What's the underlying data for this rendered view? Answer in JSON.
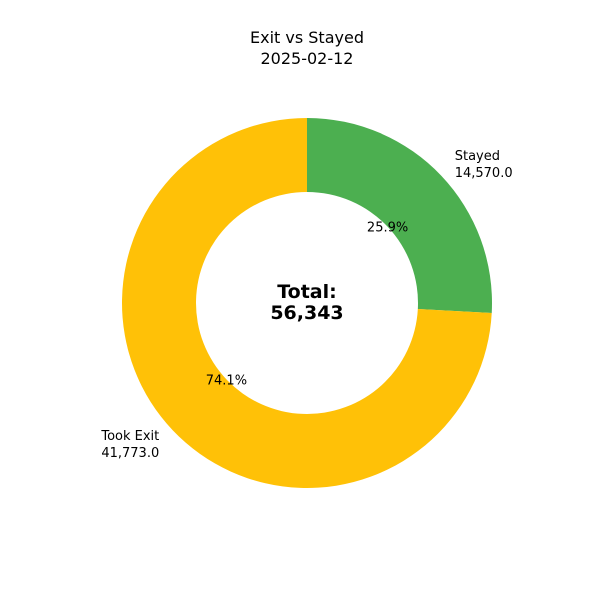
{
  "chart_data": {
    "type": "pie",
    "variant": "donut",
    "title": "Exit vs Stayed",
    "subtitle": "2025-02-12",
    "slices": [
      {
        "label": "Stayed",
        "value": 14570.0,
        "value_label": "14,570.0",
        "percent_label": "25.9%",
        "color": "#4caf50"
      },
      {
        "label": "Took Exit",
        "value": 41773.0,
        "value_label": "41,773.0",
        "percent_label": "74.1%",
        "color": "#ffc107"
      }
    ],
    "start_angle_deg": 90,
    "direction": "clockwise",
    "center_label": "Total:",
    "center_value": "56,343",
    "legend": "none"
  }
}
